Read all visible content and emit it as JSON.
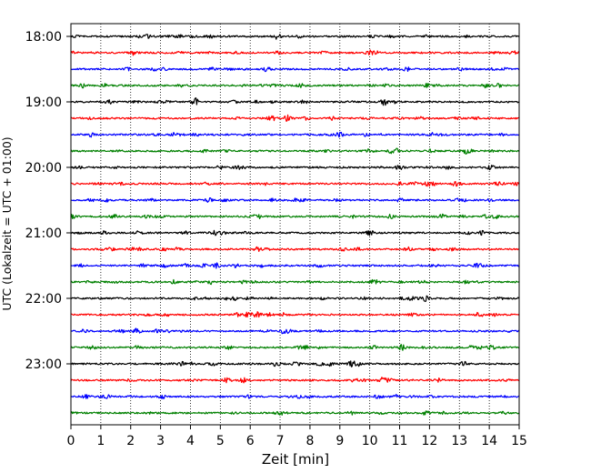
{
  "chart_data": {
    "type": "line",
    "title": "",
    "xlabel": "Zeit  [min]",
    "ylabel": "UTC (Lokalzeit = UTC + 01:00)",
    "xlim": [
      0,
      15
    ],
    "x_ticks": [
      "0",
      "1",
      "2",
      "3",
      "4",
      "5",
      "6",
      "7",
      "8",
      "9",
      "10",
      "11",
      "12",
      "13",
      "14",
      "15"
    ],
    "y_ticks": [
      "18:00",
      "19:00",
      "20:00",
      "21:00",
      "22:00",
      "23:00"
    ],
    "grid": "vertical dotted lines at each minute",
    "traces_per_hour": 4,
    "trace_minutes": 15,
    "series": [
      {
        "start": "18:00",
        "color": "#000000"
      },
      {
        "start": "18:15",
        "color": "#ff0000"
      },
      {
        "start": "18:30",
        "color": "#0000ff"
      },
      {
        "start": "18:45",
        "color": "#008000"
      },
      {
        "start": "19:00",
        "color": "#000000"
      },
      {
        "start": "19:15",
        "color": "#ff0000"
      },
      {
        "start": "19:30",
        "color": "#0000ff"
      },
      {
        "start": "19:45",
        "color": "#008000"
      },
      {
        "start": "20:00",
        "color": "#000000"
      },
      {
        "start": "20:15",
        "color": "#ff0000"
      },
      {
        "start": "20:30",
        "color": "#0000ff"
      },
      {
        "start": "20:45",
        "color": "#008000"
      },
      {
        "start": "21:00",
        "color": "#000000"
      },
      {
        "start": "21:15",
        "color": "#ff0000"
      },
      {
        "start": "21:30",
        "color": "#0000ff"
      },
      {
        "start": "21:45",
        "color": "#008000"
      },
      {
        "start": "22:00",
        "color": "#000000"
      },
      {
        "start": "22:15",
        "color": "#ff0000"
      },
      {
        "start": "22:30",
        "color": "#0000ff"
      },
      {
        "start": "22:45",
        "color": "#008000"
      },
      {
        "start": "23:00",
        "color": "#000000"
      },
      {
        "start": "23:15",
        "color": "#ff0000"
      },
      {
        "start": "23:30",
        "color": "#0000ff"
      },
      {
        "start": "23:45",
        "color": "#008000"
      }
    ]
  }
}
